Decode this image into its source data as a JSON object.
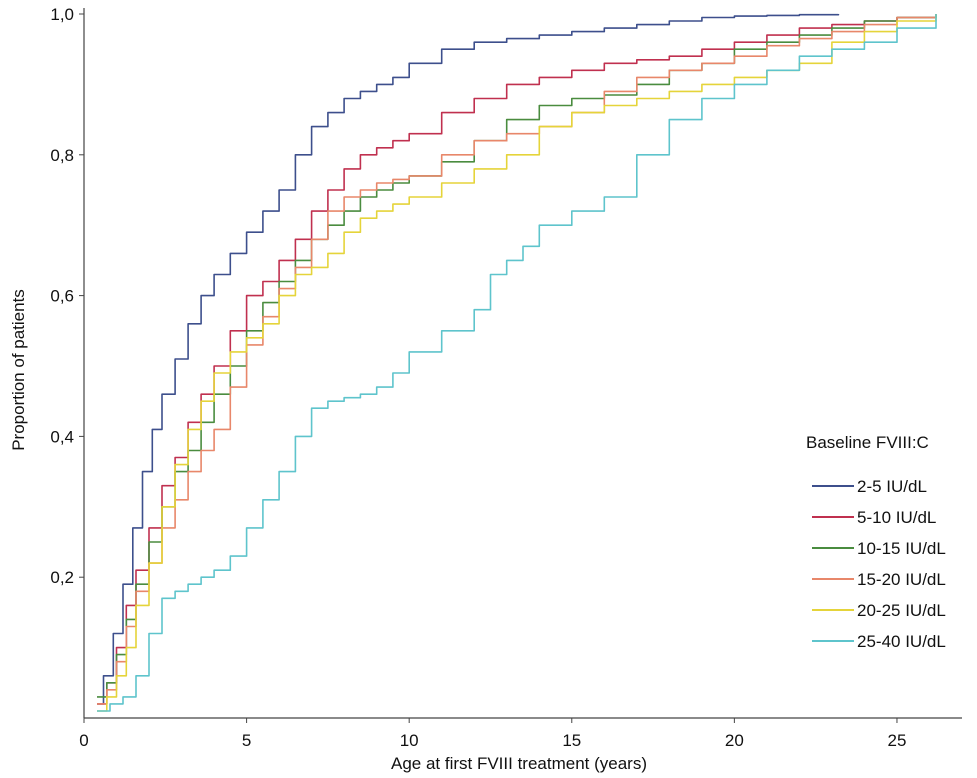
{
  "chart_data": {
    "type": "line",
    "title": "",
    "xlabel": "Age at first FVIII treatment (years)",
    "ylabel": "Proportion of patients",
    "xlim": [
      0,
      27
    ],
    "ylim": [
      0,
      1.0
    ],
    "xticks": [
      0,
      5,
      10,
      15,
      20,
      25
    ],
    "xtick_labels": [
      "0",
      "5",
      "10",
      "15",
      "20",
      "25"
    ],
    "yticks": [
      0.2,
      0.4,
      0.6,
      0.8,
      1.0
    ],
    "ytick_labels": [
      "0,2",
      "0,4",
      "0,6",
      "0,8",
      "1,0"
    ],
    "grid": false,
    "legend": {
      "title": "Baseline FVIII:C",
      "placement": "right"
    },
    "series": [
      {
        "name": "2-5 IU/dL",
        "color": "#3d4f8c",
        "x": [
          0.4,
          0.6,
          0.9,
          1.2,
          1.5,
          1.8,
          2.1,
          2.4,
          2.8,
          3.2,
          3.6,
          4.0,
          4.5,
          5.0,
          5.5,
          6.0,
          6.5,
          7.0,
          7.5,
          8.0,
          8.5,
          9.0,
          9.5,
          10.0,
          11.0,
          12.0,
          13.0,
          14.0,
          15.0,
          16.0,
          17.0,
          18.0,
          19.0,
          20.0,
          21.0,
          22.0,
          23.2
        ],
        "y": [
          0.02,
          0.06,
          0.12,
          0.19,
          0.27,
          0.35,
          0.41,
          0.46,
          0.51,
          0.56,
          0.6,
          0.63,
          0.66,
          0.69,
          0.72,
          0.75,
          0.8,
          0.84,
          0.86,
          0.88,
          0.89,
          0.9,
          0.91,
          0.93,
          0.95,
          0.96,
          0.965,
          0.97,
          0.975,
          0.98,
          0.985,
          0.99,
          0.995,
          0.997,
          0.998,
          0.999,
          1.0
        ]
      },
      {
        "name": "5-10 IU/dL",
        "color": "#c0304f",
        "x": [
          0.4,
          0.7,
          1.0,
          1.3,
          1.6,
          2.0,
          2.4,
          2.8,
          3.2,
          3.6,
          4.0,
          4.5,
          5.0,
          5.5,
          6.0,
          6.5,
          7.0,
          7.5,
          8.0,
          8.5,
          9.0,
          9.5,
          10.0,
          11.0,
          12.0,
          13.0,
          14.0,
          15.0,
          16.0,
          17.0,
          18.0,
          19.0,
          20.0,
          21.0,
          22.0,
          23.0,
          24.0,
          25.0,
          26.2
        ],
        "y": [
          0.02,
          0.05,
          0.1,
          0.16,
          0.21,
          0.27,
          0.33,
          0.37,
          0.42,
          0.46,
          0.5,
          0.55,
          0.6,
          0.62,
          0.65,
          0.68,
          0.72,
          0.75,
          0.78,
          0.8,
          0.81,
          0.82,
          0.83,
          0.86,
          0.88,
          0.9,
          0.91,
          0.92,
          0.93,
          0.935,
          0.94,
          0.95,
          0.96,
          0.97,
          0.98,
          0.985,
          0.99,
          0.995,
          1.0
        ]
      },
      {
        "name": "10-15 IU/dL",
        "color": "#4a8c3f",
        "x": [
          0.4,
          0.7,
          1.0,
          1.3,
          1.6,
          2.0,
          2.4,
          2.8,
          3.2,
          3.6,
          4.0,
          4.5,
          5.0,
          5.5,
          6.0,
          6.5,
          7.0,
          7.5,
          8.0,
          8.5,
          9.0,
          9.5,
          10.0,
          11.0,
          12.0,
          13.0,
          14.0,
          15.0,
          16.0,
          17.0,
          18.0,
          19.0,
          20.0,
          21.0,
          22.0,
          23.0,
          24.0,
          25.0,
          26.2
        ],
        "y": [
          0.03,
          0.05,
          0.09,
          0.14,
          0.19,
          0.25,
          0.3,
          0.35,
          0.38,
          0.42,
          0.46,
          0.5,
          0.55,
          0.59,
          0.62,
          0.65,
          0.68,
          0.7,
          0.72,
          0.74,
          0.75,
          0.76,
          0.77,
          0.79,
          0.82,
          0.85,
          0.87,
          0.88,
          0.885,
          0.9,
          0.92,
          0.93,
          0.95,
          0.96,
          0.97,
          0.98,
          0.99,
          0.995,
          1.0
        ]
      },
      {
        "name": "15-20 IU/dL",
        "color": "#e8876a",
        "x": [
          0.4,
          0.7,
          1.0,
          1.3,
          1.6,
          2.0,
          2.4,
          2.8,
          3.2,
          3.6,
          4.0,
          4.5,
          5.0,
          5.5,
          6.0,
          6.5,
          7.0,
          7.5,
          8.0,
          8.5,
          9.0,
          9.5,
          10.0,
          11.0,
          12.0,
          13.0,
          14.0,
          15.0,
          16.0,
          17.0,
          18.0,
          19.0,
          20.0,
          21.0,
          22.0,
          23.0,
          24.0,
          25.0,
          26.2
        ],
        "y": [
          0.02,
          0.04,
          0.08,
          0.13,
          0.18,
          0.22,
          0.27,
          0.31,
          0.35,
          0.38,
          0.41,
          0.47,
          0.53,
          0.57,
          0.61,
          0.64,
          0.68,
          0.72,
          0.74,
          0.75,
          0.76,
          0.765,
          0.77,
          0.8,
          0.82,
          0.83,
          0.84,
          0.86,
          0.89,
          0.91,
          0.92,
          0.93,
          0.94,
          0.955,
          0.965,
          0.975,
          0.985,
          0.995,
          1.0
        ]
      },
      {
        "name": "20-25 IU/dL",
        "color": "#e5d43a",
        "x": [
          0.4,
          0.7,
          1.0,
          1.3,
          1.6,
          2.0,
          2.4,
          2.8,
          3.2,
          3.6,
          4.0,
          4.5,
          5.0,
          5.5,
          6.0,
          6.5,
          7.0,
          7.5,
          8.0,
          8.5,
          9.0,
          9.5,
          10.0,
          11.0,
          12.0,
          13.0,
          14.0,
          15.0,
          16.0,
          17.0,
          18.0,
          19.0,
          20.0,
          21.0,
          22.0,
          23.0,
          24.0,
          25.0,
          26.2
        ],
        "y": [
          0.01,
          0.03,
          0.06,
          0.1,
          0.16,
          0.22,
          0.3,
          0.36,
          0.41,
          0.45,
          0.49,
          0.52,
          0.54,
          0.56,
          0.6,
          0.63,
          0.64,
          0.66,
          0.69,
          0.71,
          0.72,
          0.73,
          0.74,
          0.76,
          0.78,
          0.8,
          0.84,
          0.86,
          0.87,
          0.88,
          0.89,
          0.9,
          0.91,
          0.92,
          0.93,
          0.96,
          0.975,
          0.99,
          1.0
        ]
      },
      {
        "name": "25-40 IU/dL",
        "color": "#5ec4cc",
        "x": [
          0.4,
          0.8,
          1.2,
          1.6,
          2.0,
          2.4,
          2.8,
          3.2,
          3.6,
          4.0,
          4.5,
          5.0,
          5.5,
          6.0,
          6.5,
          7.0,
          7.5,
          8.0,
          8.5,
          9.0,
          9.5,
          10.0,
          11.0,
          12.0,
          12.5,
          13.0,
          13.5,
          14.0,
          15.0,
          16.0,
          17.0,
          18.0,
          19.0,
          20.0,
          21.0,
          22.0,
          23.0,
          24.0,
          25.0,
          26.2
        ],
        "y": [
          0.01,
          0.02,
          0.03,
          0.06,
          0.12,
          0.17,
          0.18,
          0.19,
          0.2,
          0.21,
          0.23,
          0.27,
          0.31,
          0.35,
          0.4,
          0.44,
          0.45,
          0.455,
          0.46,
          0.47,
          0.49,
          0.52,
          0.55,
          0.58,
          0.63,
          0.65,
          0.67,
          0.7,
          0.72,
          0.74,
          0.8,
          0.85,
          0.88,
          0.9,
          0.92,
          0.94,
          0.95,
          0.96,
          0.98,
          1.0
        ]
      }
    ]
  }
}
